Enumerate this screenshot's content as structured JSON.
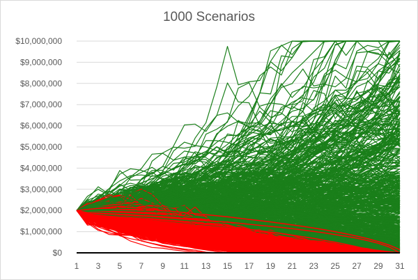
{
  "chart_data": {
    "type": "line",
    "title": "1000 Scenarios",
    "xlabel": "",
    "ylabel": "",
    "x_range": [
      1,
      31
    ],
    "x_ticks": [
      "1",
      "3",
      "5",
      "7",
      "9",
      "11",
      "13",
      "15",
      "17",
      "19",
      "21",
      "23",
      "25",
      "27",
      "29",
      "31"
    ],
    "ylim": [
      0,
      10000000
    ],
    "y_ticks": [
      "$0",
      "$1,000,000",
      "$2,000,000",
      "$3,000,000",
      "$4,000,000",
      "$5,000,000",
      "$6,000,000",
      "$7,000,000",
      "$8,000,000",
      "$9,000,000",
      "$10,000,000"
    ],
    "grid": "horizontal",
    "legend": "none",
    "scenario_count": 1000,
    "start_value": 2000000,
    "colors": {
      "surviving": "#1a7f1a",
      "depleted": "#ff0000",
      "grid": "#d9d9d9",
      "axis": "#000000"
    },
    "representative_series": [
      {
        "color": "surviving",
        "values": [
          2000000,
          2250000,
          2400000,
          2600000,
          2850000,
          3050000,
          3300000,
          3500000,
          3700000,
          4000000,
          4200000,
          4200000,
          4600000,
          5000000,
          4700000,
          4900000,
          5200000,
          5500000,
          5700000,
          5800000,
          6000000,
          6300000,
          6700000,
          7000000,
          6800000,
          7300000,
          7250000,
          7600000,
          8000000,
          8700000,
          9200000
        ]
      },
      {
        "color": "surviving",
        "values": [
          2000000,
          2200000,
          2350000,
          2500000,
          2650000,
          2800000,
          2950000,
          3100000,
          3250000,
          3450000,
          3600000,
          3800000,
          4000000,
          4200000,
          4350000,
          4550000,
          4700000,
          4850000,
          5000000,
          5150000,
          5300000,
          5500000,
          5700000,
          5900000,
          6100000,
          6400000,
          6600000,
          6850000,
          7100000,
          7400000,
          7850000
        ]
      },
      {
        "color": "surviving",
        "values": [
          2000000,
          2150000,
          2300000,
          2400000,
          2550000,
          2650000,
          2800000,
          2950000,
          3050000,
          3200000,
          3300000,
          3450000,
          3600000,
          3700000,
          3850000,
          3950000,
          4100000,
          4200000,
          4350000,
          4500000,
          4650000,
          4800000,
          5000000,
          5200000,
          5400000,
          5600000,
          5850000,
          6100000,
          6400000,
          6700000,
          7000000
        ]
      },
      {
        "color": "surviving",
        "values": [
          2000000,
          2100000,
          2250000,
          2350000,
          2450000,
          2550000,
          2650000,
          2750000,
          2850000,
          2950000,
          3050000,
          3150000,
          3250000,
          3350000,
          3450000,
          3550000,
          3650000,
          3750000,
          3850000,
          3950000,
          4050000,
          4150000,
          4250000,
          4350000,
          4450000,
          4550000,
          4700000,
          4850000,
          5000000,
          5150000,
          5300000
        ]
      },
      {
        "color": "surviving",
        "values": [
          2000000,
          2100000,
          2200000,
          2300000,
          2350000,
          2450000,
          2500000,
          2600000,
          2650000,
          2750000,
          2800000,
          2900000,
          2950000,
          3050000,
          3100000,
          3200000,
          3250000,
          3350000,
          3400000,
          3500000,
          3550000,
          3650000,
          3700000,
          3800000,
          3850000,
          3950000,
          4000000,
          4100000,
          4150000,
          4250000,
          4300000
        ]
      },
      {
        "color": "surviving",
        "values": [
          2000000,
          2050000,
          2150000,
          2200000,
          2250000,
          2300000,
          2350000,
          2400000,
          2450000,
          2500000,
          2550000,
          2600000,
          2650000,
          2700000,
          2750000,
          2800000,
          2850000,
          2900000,
          2950000,
          3000000,
          3050000,
          3100000,
          3150000,
          3200000,
          3250000,
          3300000,
          3350000,
          3400000,
          3450000,
          3500000,
          3550000
        ]
      },
      {
        "color": "surviving",
        "values": [
          2000000,
          2050000,
          2100000,
          2150000,
          2200000,
          2200000,
          2250000,
          2300000,
          2300000,
          2350000,
          2400000,
          2400000,
          2450000,
          2450000,
          2500000,
          2500000,
          2550000,
          2550000,
          2600000,
          2600000,
          2650000,
          2650000,
          2700000,
          2700000,
          2750000,
          2750000,
          2800000,
          2800000,
          2850000,
          2850000,
          2900000
        ]
      },
      {
        "color": "surviving",
        "values": [
          2000000,
          2000000,
          2050000,
          2050000,
          2100000,
          2100000,
          2100000,
          2150000,
          2150000,
          2150000,
          2200000,
          2200000,
          2200000,
          2200000,
          2250000,
          2250000,
          2250000,
          2250000,
          2250000,
          2250000,
          2250000,
          2250000,
          2250000,
          2250000,
          2250000,
          2250000,
          2250000,
          2250000,
          2250000,
          2250000,
          2250000
        ]
      },
      {
        "color": "surviving",
        "values": [
          2000000,
          2000000,
          2000000,
          2000000,
          2000000,
          1980000,
          1960000,
          1950000,
          1930000,
          1910000,
          1890000,
          1870000,
          1850000,
          1830000,
          1810000,
          1790000,
          1770000,
          1750000,
          1730000,
          1710000,
          1690000,
          1670000,
          1650000,
          1630000,
          1610000,
          1590000,
          1570000,
          1550000,
          1530000,
          1510000,
          1500000
        ]
      },
      {
        "color": "surviving",
        "values": [
          2000000,
          1950000,
          1930000,
          1900000,
          1870000,
          1850000,
          1820000,
          1790000,
          1760000,
          1730000,
          1700000,
          1670000,
          1640000,
          1610000,
          1580000,
          1550000,
          1520000,
          1490000,
          1460000,
          1430000,
          1400000,
          1370000,
          1340000,
          1310000,
          1280000,
          1250000,
          1220000,
          1190000,
          1160000,
          1130000,
          1100000
        ]
      },
      {
        "color": "surviving",
        "values": [
          2000000,
          1900000,
          1850000,
          1820000,
          1780000,
          1740000,
          1700000,
          1660000,
          1620000,
          1580000,
          1540000,
          1500000,
          1460000,
          1420000,
          1380000,
          1340000,
          1300000,
          1260000,
          1220000,
          1180000,
          1140000,
          1100000,
          1060000,
          1020000,
          980000,
          940000,
          900000,
          860000,
          820000,
          780000,
          740000
        ]
      },
      {
        "color": "surviving",
        "values": [
          2000000,
          1900000,
          1820000,
          1770000,
          1720000,
          1670000,
          1620000,
          1570000,
          1520000,
          1470000,
          1420000,
          1370000,
          1320000,
          1270000,
          1220000,
          1170000,
          1120000,
          1070000,
          1020000,
          970000,
          920000,
          870000,
          820000,
          770000,
          720000,
          670000,
          600000,
          530000,
          460000,
          380000,
          250000
        ]
      },
      {
        "color": "depleted",
        "values": [
          2000000,
          1900000,
          1850000,
          1830000,
          1800000,
          1770000,
          1740000,
          1710000,
          1680000,
          1650000,
          1610000,
          1570000,
          1530000,
          1490000,
          1450000,
          1400000,
          1350000,
          1300000,
          1250000,
          1200000,
          1140000,
          1080000,
          1010000,
          940000,
          860000,
          780000,
          690000,
          580000,
          450000,
          280000,
          0
        ]
      },
      {
        "color": "depleted",
        "values": [
          2000000,
          1850000,
          1780000,
          1730000,
          1690000,
          1650000,
          1610000,
          1570000,
          1530000,
          1490000,
          1440000,
          1390000,
          1340000,
          1290000,
          1230000,
          1170000,
          1110000,
          1050000,
          980000,
          910000,
          840000,
          760000,
          680000,
          590000,
          500000,
          400000,
          290000,
          170000,
          40000,
          0,
          0
        ]
      },
      {
        "color": "depleted",
        "values": [
          2000000,
          1800000,
          1700000,
          1650000,
          1600000,
          1550000,
          1500000,
          1450000,
          1400000,
          1350000,
          1300000,
          1250000,
          1190000,
          1130000,
          1070000,
          1000000,
          930000,
          860000,
          780000,
          700000,
          610000,
          520000,
          420000,
          310000,
          190000,
          60000,
          0,
          0,
          0,
          0,
          0
        ]
      },
      {
        "color": "depleted",
        "values": [
          2000000,
          1750000,
          1600000,
          1550000,
          1500000,
          1450000,
          1400000,
          1350000,
          1290000,
          1230000,
          1170000,
          1110000,
          1040000,
          970000,
          900000,
          820000,
          740000,
          650000,
          560000,
          460000,
          350000,
          230000,
          100000,
          0,
          0,
          0,
          0,
          0,
          0,
          0,
          0
        ]
      },
      {
        "color": "depleted",
        "values": [
          2000000,
          1700000,
          1450000,
          1400000,
          1350000,
          1300000,
          1250000,
          1200000,
          1140000,
          1080000,
          1010000,
          940000,
          870000,
          790000,
          710000,
          620000,
          530000,
          430000,
          320000,
          200000,
          70000,
          0,
          0,
          0,
          0,
          0,
          0,
          0,
          0,
          0,
          0
        ]
      },
      {
        "color": "depleted",
        "values": [
          2000000,
          2050000,
          2100000,
          2150000,
          2200000,
          2150000,
          2100000,
          2050000,
          2000000,
          1950000,
          1900000,
          1850000,
          1800000,
          1750000,
          1700000,
          1640000,
          1580000,
          1520000,
          1460000,
          1390000,
          1320000,
          1250000,
          1170000,
          1090000,
          1000000,
          900000,
          790000,
          670000,
          530000,
          370000,
          150000
        ]
      }
    ]
  }
}
